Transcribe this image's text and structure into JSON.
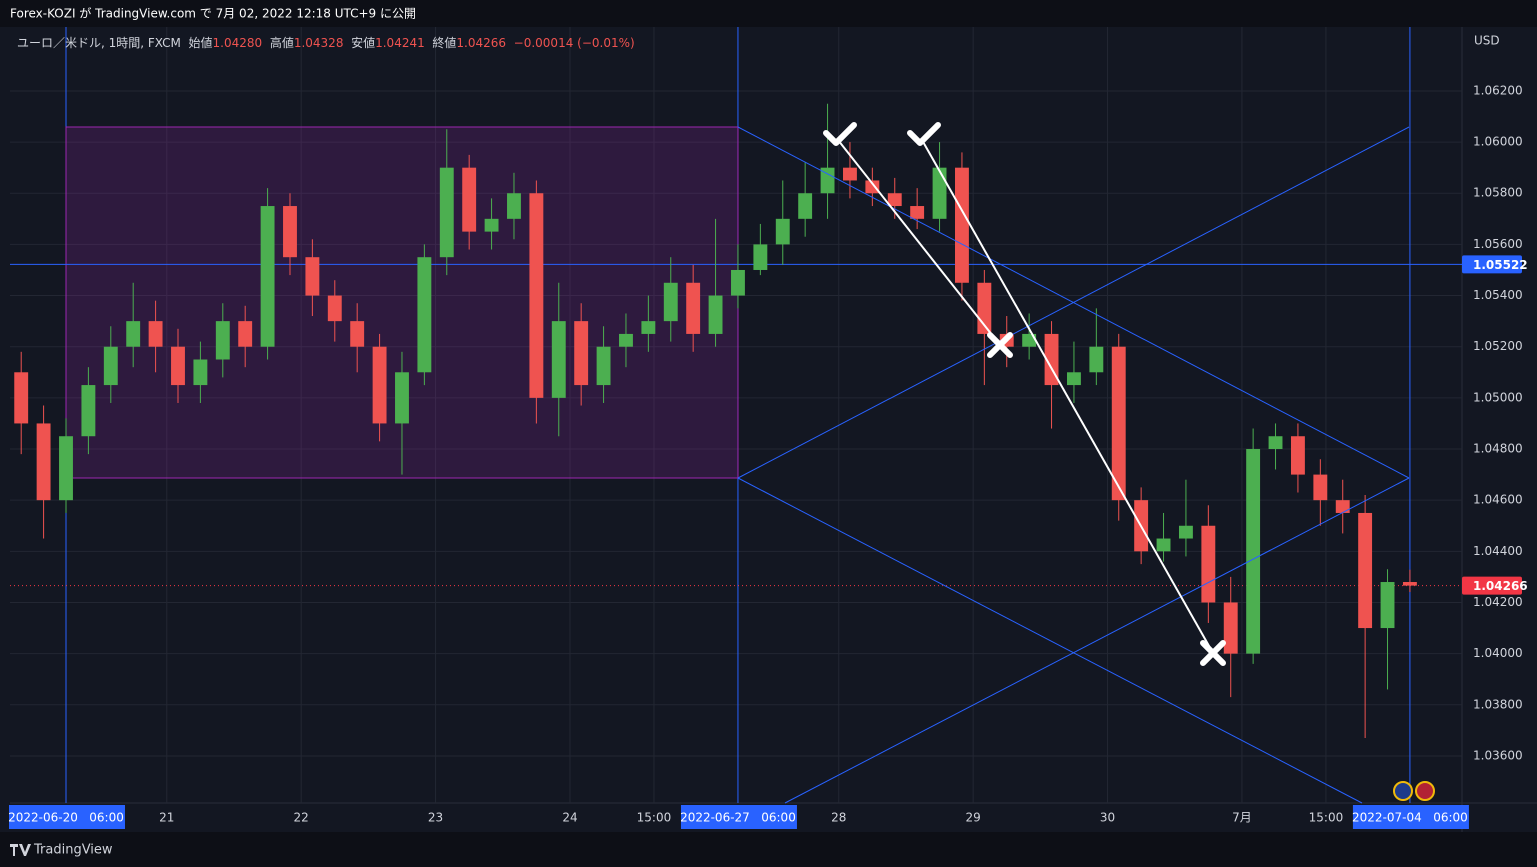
{
  "header": {
    "published": "Forex-KOZI が TradingView.com で 7月 02, 2022 12:18 UTC+9 に公開",
    "brand": "TradingView"
  },
  "legend": {
    "symbol": "ユーロ／米ドル, 1時間, FXCM",
    "open_label": "始値",
    "open": "1.04280",
    "high_label": "高値",
    "high": "1.04328",
    "low_label": "安値",
    "low": "1.04241",
    "close_label": "終値",
    "close": "1.04266",
    "change": "−0.00014 (−0.01%)"
  },
  "chart_data": {
    "type": "candlestick",
    "currency": "USD",
    "up_color": "#4caf50",
    "down_color": "#ef5350",
    "x": [
      -8,
      -4,
      0,
      4,
      8,
      12,
      16,
      20,
      24,
      28,
      32,
      36,
      40,
      44,
      48,
      52,
      56,
      60,
      64,
      68,
      72,
      76,
      80,
      84,
      88,
      92,
      96,
      100,
      104,
      108,
      112,
      116,
      120,
      124,
      128,
      132,
      136,
      140,
      144,
      148,
      152,
      156,
      160,
      164,
      168,
      172,
      176,
      180,
      184,
      188,
      192,
      196,
      200,
      204,
      208,
      212,
      216,
      220,
      224,
      228,
      232,
      236,
      240
    ],
    "open": [
      1.051,
      1.049,
      1.046,
      1.0485,
      1.0505,
      1.052,
      1.053,
      1.052,
      1.0505,
      1.0515,
      1.053,
      1.052,
      1.0575,
      1.0555,
      1.054,
      1.053,
      1.052,
      1.049,
      1.051,
      1.0555,
      1.059,
      1.0565,
      1.057,
      1.058,
      1.05,
      1.053,
      1.0505,
      1.052,
      1.0525,
      1.053,
      1.0545,
      1.0525,
      1.054,
      1.055,
      1.056,
      1.057,
      1.058,
      1.059,
      1.0585,
      1.058,
      1.0575,
      1.057,
      1.059,
      1.0545,
      1.0525,
      1.052,
      1.0525,
      1.0505,
      1.051,
      1.052,
      1.046,
      1.044,
      1.0445,
      1.045,
      1.042,
      1.04,
      1.048,
      1.0485,
      1.047,
      1.046,
      1.0455,
      1.041,
      1.0428
    ],
    "high": [
      1.0518,
      1.0497,
      1.0492,
      1.0512,
      1.0528,
      1.0545,
      1.0538,
      1.0527,
      1.0522,
      1.0537,
      1.0536,
      1.0582,
      1.058,
      1.0562,
      1.0546,
      1.0537,
      1.0525,
      1.0518,
      1.056,
      1.0605,
      1.0595,
      1.0578,
      1.0588,
      1.0585,
      1.0545,
      1.0537,
      1.0528,
      1.0533,
      1.054,
      1.0555,
      1.0552,
      1.057,
      1.056,
      1.0568,
      1.0585,
      1.0592,
      1.0615,
      1.06,
      1.059,
      1.0586,
      1.0582,
      1.06,
      1.0596,
      1.055,
      1.0532,
      1.0533,
      1.053,
      1.0522,
      1.0535,
      1.0525,
      1.0465,
      1.0455,
      1.0468,
      1.0458,
      1.043,
      1.0488,
      1.049,
      1.049,
      1.0476,
      1.0468,
      1.0462,
      1.0433,
      1.04328
    ],
    "low": [
      1.0478,
      1.0445,
      1.0455,
      1.0478,
      1.0498,
      1.0512,
      1.051,
      1.0498,
      1.0498,
      1.0508,
      1.0512,
      1.0515,
      1.0548,
      1.0532,
      1.0522,
      1.051,
      1.0483,
      1.047,
      1.0505,
      1.0548,
      1.0558,
      1.0558,
      1.0562,
      1.049,
      1.0485,
      1.0497,
      1.0498,
      1.0512,
      1.0518,
      1.0522,
      1.0518,
      1.052,
      1.0535,
      1.0548,
      1.0552,
      1.0563,
      1.057,
      1.0578,
      1.0575,
      1.057,
      1.0566,
      1.0565,
      1.0538,
      1.0505,
      1.0512,
      1.0515,
      1.0488,
      1.0498,
      1.0505,
      1.0452,
      1.0435,
      1.0436,
      1.0438,
      1.0412,
      1.0383,
      1.0396,
      1.0472,
      1.0463,
      1.045,
      1.0447,
      1.0367,
      1.0386,
      1.04241
    ],
    "close": [
      1.049,
      1.046,
      1.0485,
      1.0505,
      1.052,
      1.053,
      1.052,
      1.0505,
      1.0515,
      1.053,
      1.052,
      1.0575,
      1.0555,
      1.054,
      1.053,
      1.052,
      1.049,
      1.051,
      1.0555,
      1.059,
      1.0565,
      1.057,
      1.058,
      1.05,
      1.053,
      1.0505,
      1.052,
      1.0525,
      1.053,
      1.0545,
      1.0525,
      1.054,
      1.055,
      1.056,
      1.057,
      1.058,
      1.059,
      1.0585,
      1.058,
      1.0575,
      1.057,
      1.059,
      1.0545,
      1.0525,
      1.052,
      1.0525,
      1.0505,
      1.051,
      1.052,
      1.046,
      1.044,
      1.0445,
      1.045,
      1.042,
      1.04,
      1.048,
      1.0485,
      1.047,
      1.046,
      1.0455,
      1.041,
      1.0428,
      1.04266
    ],
    "xlim": [
      -10,
      249.3
    ],
    "xticks": [
      {
        "value": 0,
        "label": "2022-06-20   06:00"
      },
      {
        "value": 18,
        "label": "21"
      },
      {
        "value": 42,
        "label": "22"
      },
      {
        "value": 66,
        "label": "23"
      },
      {
        "value": 90,
        "label": "24"
      },
      {
        "value": 105,
        "label": "15:00"
      },
      {
        "value": 120,
        "label": "2022-06-27   06:00"
      },
      {
        "value": 138,
        "label": "28"
      },
      {
        "value": 162,
        "label": "29"
      },
      {
        "value": 186,
        "label": "30"
      },
      {
        "value": 210,
        "label": "7月"
      },
      {
        "value": 225,
        "label": "15:00"
      },
      {
        "value": 240,
        "label": "2022-07-04   06:00"
      }
    ],
    "vlines": [
      0,
      120,
      240
    ],
    "ylim": [
      1.03416,
      1.0645
    ],
    "yticks": [
      {
        "value": 1.036,
        "label": "1.03600"
      },
      {
        "value": 1.038,
        "label": "1.03800"
      },
      {
        "value": 1.04,
        "label": "1.04000"
      },
      {
        "value": 1.042,
        "label": "1.04200"
      },
      {
        "value": 1.044,
        "label": "1.04400"
      },
      {
        "value": 1.046,
        "label": "1.04600"
      },
      {
        "value": 1.048,
        "label": "1.04800"
      },
      {
        "value": 1.05,
        "label": "1.05000"
      },
      {
        "value": 1.052,
        "label": "1.05200"
      },
      {
        "value": 1.054,
        "label": "1.05400"
      },
      {
        "value": 1.056,
        "label": "1.05600"
      },
      {
        "value": 1.058,
        "label": "1.05800"
      },
      {
        "value": 1.06,
        "label": "1.06000"
      },
      {
        "value": 1.062,
        "label": "1.06200"
      }
    ],
    "price_lines": [
      {
        "value": 1.05522,
        "label": "1.05522",
        "color": "#2962ff",
        "style": "solid"
      },
      {
        "value": 1.04266,
        "label": "1.04266",
        "color": "#f23645",
        "style": "dotted"
      }
    ],
    "grid": true
  }
}
